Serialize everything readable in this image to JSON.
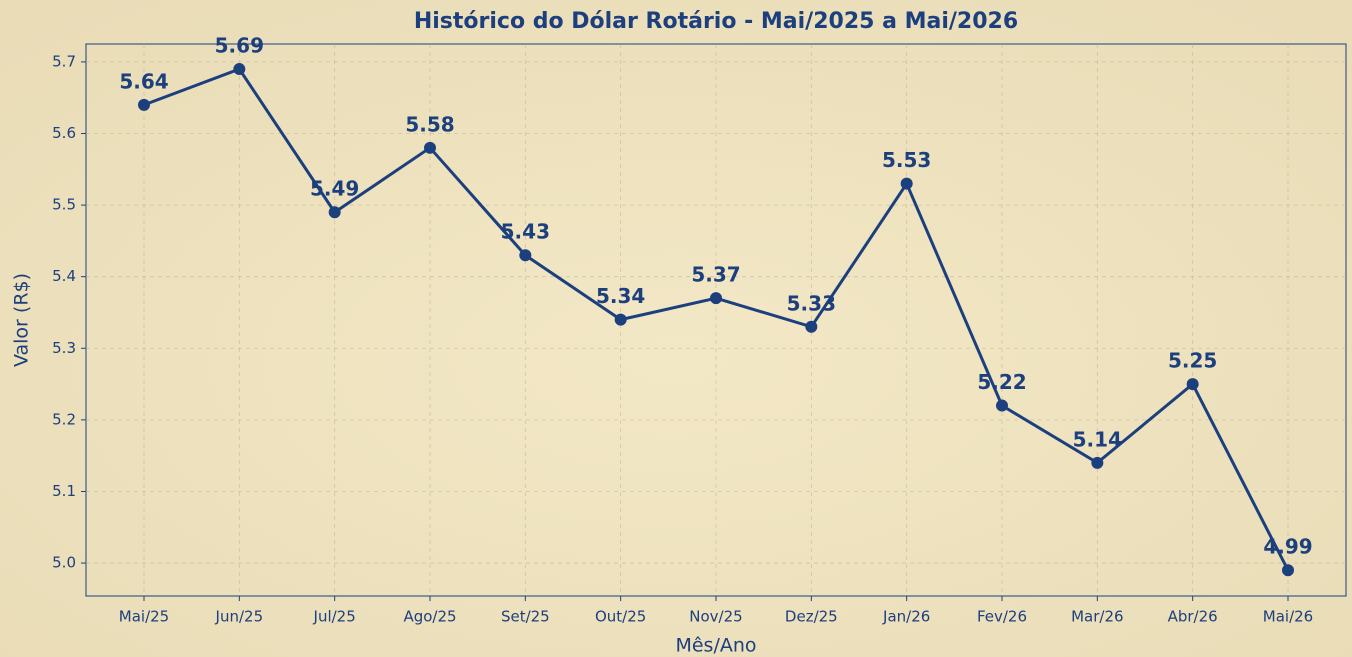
{
  "chart_data": {
    "type": "line",
    "title": "Histórico do Dólar Rotário - Mai/2025 a Mai/2026",
    "x_label": "Mês/Ano",
    "y_label": "Valor (R$)",
    "categories": [
      "Mai/25",
      "Jun/25",
      "Jul/25",
      "Ago/25",
      "Set/25",
      "Out/25",
      "Nov/25",
      "Dez/25",
      "Jan/26",
      "Fev/26",
      "Mar/26",
      "Abr/26",
      "Mai/26"
    ],
    "values": [
      5.64,
      5.69,
      5.49,
      5.58,
      5.43,
      5.34,
      5.37,
      5.33,
      5.53,
      5.22,
      5.14,
      5.25,
      4.99
    ],
    "color": "#1c3f7e",
    "ylim": [
      4.954,
      5.725
    ],
    "yticks": [
      {
        "value": 5,
        "label": "5.0"
      },
      5.1,
      5.2,
      5.3,
      5.4,
      5.5,
      5.6,
      5.7
    ],
    "grid": true
  }
}
